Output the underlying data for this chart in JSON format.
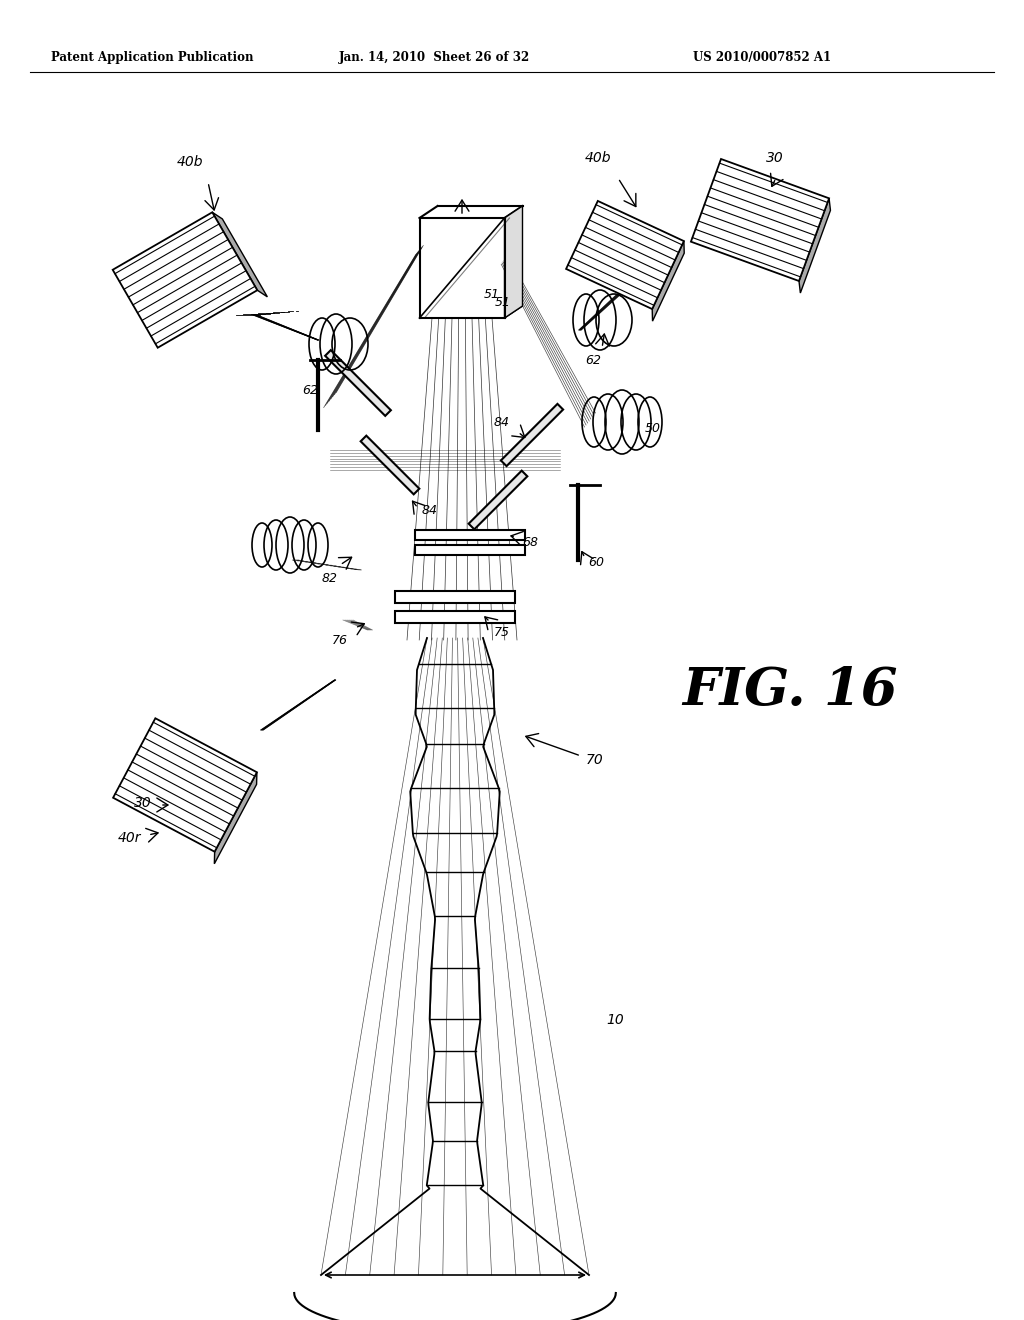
{
  "bg_color": "#ffffff",
  "header_left": "Patent Application Publication",
  "header_mid": "Jan. 14, 2010  Sheet 26 of 32",
  "header_right": "US 2010/0007852 A1",
  "fig_label": "FIG. 16",
  "text_color": "#000000",
  "line_color": "#000000"
}
